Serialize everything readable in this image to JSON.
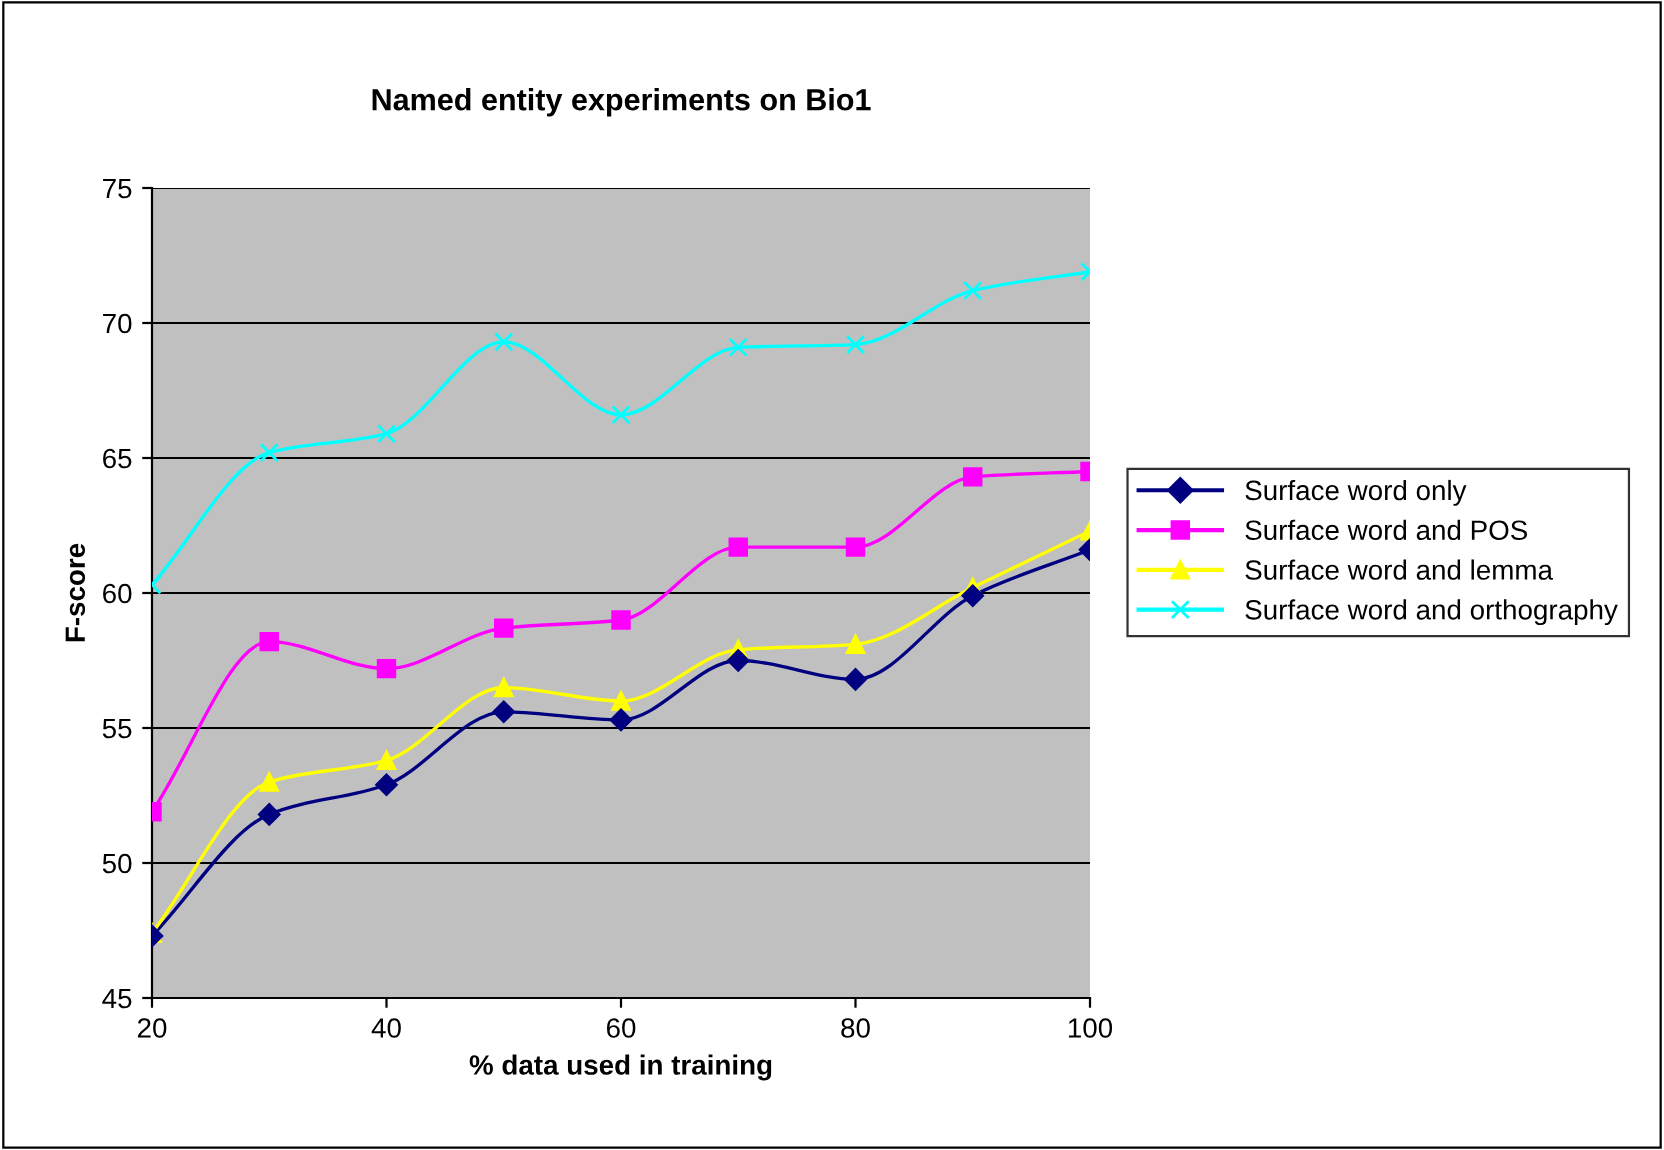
{
  "chart_data": {
    "type": "line",
    "title": "Named entity experiments on Bio1",
    "xlabel": "% data used in training",
    "ylabel": "F-score",
    "x": [
      20,
      30,
      40,
      50,
      60,
      70,
      80,
      90,
      100
    ],
    "series": [
      {
        "name": "Surface word only",
        "color": "#000080",
        "marker": "diamond",
        "values": [
          47.3,
          51.8,
          52.9,
          55.6,
          55.3,
          57.5,
          56.8,
          59.9,
          61.6
        ]
      },
      {
        "name": "Surface word and POS",
        "color": "#ff00ff",
        "marker": "square",
        "values": [
          51.9,
          58.2,
          57.2,
          58.7,
          59.0,
          61.7,
          61.7,
          64.3,
          64.5
        ]
      },
      {
        "name": "Surface word and lemma",
        "color": "#ffff00",
        "marker": "triangle",
        "values": [
          47.4,
          53.0,
          53.8,
          56.5,
          56.0,
          57.9,
          58.1,
          60.2,
          62.3
        ]
      },
      {
        "name": "Surface word and orthography",
        "color": "#00ffff",
        "marker": "cross",
        "values": [
          60.3,
          65.2,
          65.9,
          69.3,
          66.6,
          69.1,
          69.2,
          71.2,
          71.9
        ]
      }
    ],
    "xlim": [
      20,
      100
    ],
    "xticks": [
      20,
      40,
      60,
      80,
      100
    ],
    "ylim": [
      45,
      75
    ],
    "yticks": [
      45,
      50,
      55,
      60,
      65,
      70,
      75
    ],
    "grid": "y",
    "legend": "right",
    "line_style": "solid"
  }
}
